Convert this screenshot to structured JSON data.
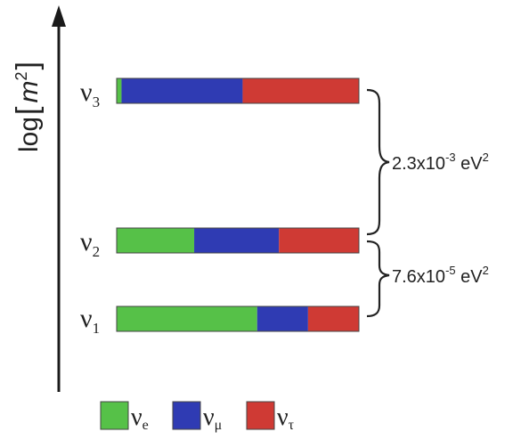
{
  "axis": {
    "label_prefix": "log",
    "label_var": "m",
    "label_sup": "2"
  },
  "colors": {
    "nu_e": "#56c148",
    "nu_mu": "#2f3bb3",
    "nu_tau": "#cf3a34",
    "axis": "#1a1a1a",
    "bar_border": "#444444"
  },
  "chart_data": {
    "type": "bar",
    "orientation": "horizontal-stacked",
    "categories": [
      "ν3",
      "ν2",
      "ν1"
    ],
    "series": [
      {
        "name": "νe",
        "values": [
          0.02,
          0.32,
          0.58
        ]
      },
      {
        "name": "νμ",
        "values": [
          0.5,
          0.35,
          0.21
        ]
      },
      {
        "name": "ντ",
        "values": [
          0.48,
          0.33,
          0.21
        ]
      }
    ]
  },
  "mass_states": [
    {
      "symbol": "ν",
      "sub": "3"
    },
    {
      "symbol": "ν",
      "sub": "2"
    },
    {
      "symbol": "ν",
      "sub": "1"
    }
  ],
  "splittings": [
    {
      "base": "2.3x10",
      "exp": "-3",
      "unit": " eV",
      "unit_exp": "2"
    },
    {
      "base": "7.6x10",
      "exp": "-5",
      "unit": " eV",
      "unit_exp": "2"
    }
  ],
  "legend": [
    {
      "symbol": "ν",
      "sub": "e"
    },
    {
      "symbol": "ν",
      "sub": "μ"
    },
    {
      "symbol": "ν",
      "sub": "τ"
    }
  ]
}
